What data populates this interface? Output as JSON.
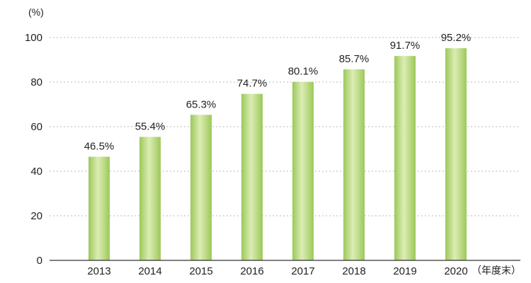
{
  "chart_data": {
    "type": "bar",
    "categories": [
      "2013",
      "2014",
      "2015",
      "2016",
      "2017",
      "2018",
      "2019",
      "2020"
    ],
    "values": [
      46.5,
      55.4,
      65.3,
      74.7,
      80.1,
      85.7,
      91.7,
      95.2
    ],
    "data_labels": [
      "46.5%",
      "55.4%",
      "65.3%",
      "74.7%",
      "80.1%",
      "85.7%",
      "91.7%",
      "95.2%"
    ],
    "y_unit": "(%)",
    "x_unit": "（年度末）",
    "y_ticks": [
      0,
      20,
      40,
      60,
      80,
      100
    ],
    "ylim": [
      0,
      100
    ],
    "grid": true,
    "legend": "none",
    "bar_color_light": "#dcedb4",
    "bar_color_dark": "#9cc85a"
  }
}
